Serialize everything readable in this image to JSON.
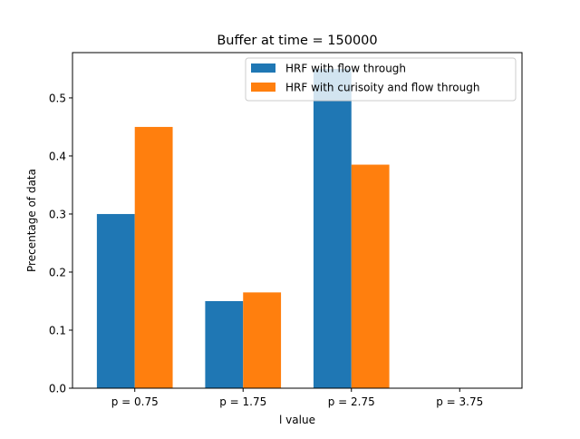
{
  "chart_data": {
    "type": "bar",
    "title": "Buffer at time = 150000",
    "xlabel": "l value",
    "ylabel": "Precentage of data",
    "categories": [
      "p = 0.75",
      "p = 1.75",
      "p = 2.75",
      "p = 3.75"
    ],
    "series": [
      {
        "name": "HRF with flow through",
        "color": "#1f77b4",
        "values": [
          0.3,
          0.15,
          0.55,
          0.0
        ]
      },
      {
        "name": "HRF with curisoity and flow through",
        "color": "#ff7f0e",
        "values": [
          0.45,
          0.165,
          0.385,
          0.0
        ]
      }
    ],
    "ylim": [
      0,
      0.578
    ],
    "yticks": [
      0.0,
      0.1,
      0.2,
      0.3,
      0.4,
      0.5
    ],
    "ytick_labels": [
      "0.0",
      "0.1",
      "0.2",
      "0.3",
      "0.4",
      "0.5"
    ],
    "grid": false,
    "legend_position": "top-right"
  }
}
